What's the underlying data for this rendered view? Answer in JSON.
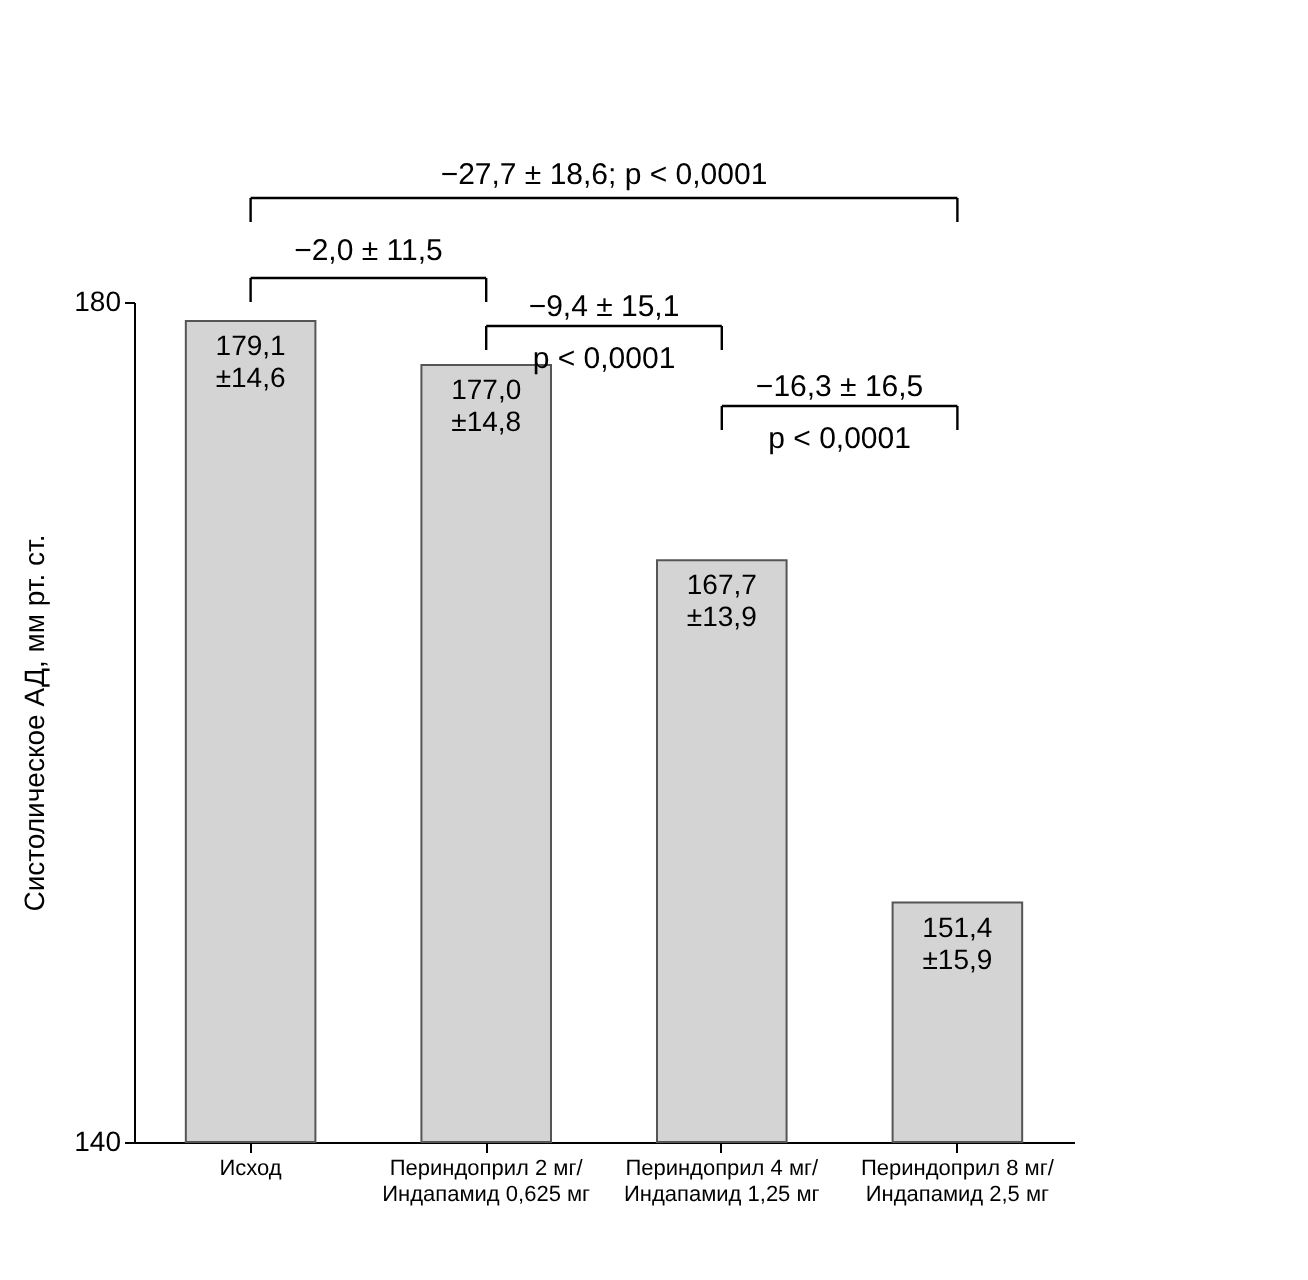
{
  "chart_data": {
    "type": "bar",
    "ylabel": "Систолическое АД, мм рт. ст.",
    "categories": [
      "Исход",
      "Периндоприл 2 мг/\nИндапамид 0,625 мг",
      "Периндоприл 4 мг/\nИндапамид 1,25 мг",
      "Периндоприл 8 мг/\nИндапамид 2,5 мг"
    ],
    "values": [
      179.1,
      177.0,
      167.7,
      151.4
    ],
    "value_labels": [
      "179,1\n±14,6",
      "177,0\n±14,8",
      "167,7\n±13,9",
      "151,4\n±15,9"
    ],
    "color": "#d4d4d4",
    "ylim": [
      140,
      180
    ],
    "yticks": [
      140,
      180
    ],
    "grid": false,
    "annotations": [
      "−27,7 ± 18,6; p < 0,0001",
      "−2,0 ± 11,5",
      "−9,4 ± 15,1",
      "p < 0,0001",
      "−16,3 ± 16,5",
      "p < 0,0001"
    ]
  }
}
